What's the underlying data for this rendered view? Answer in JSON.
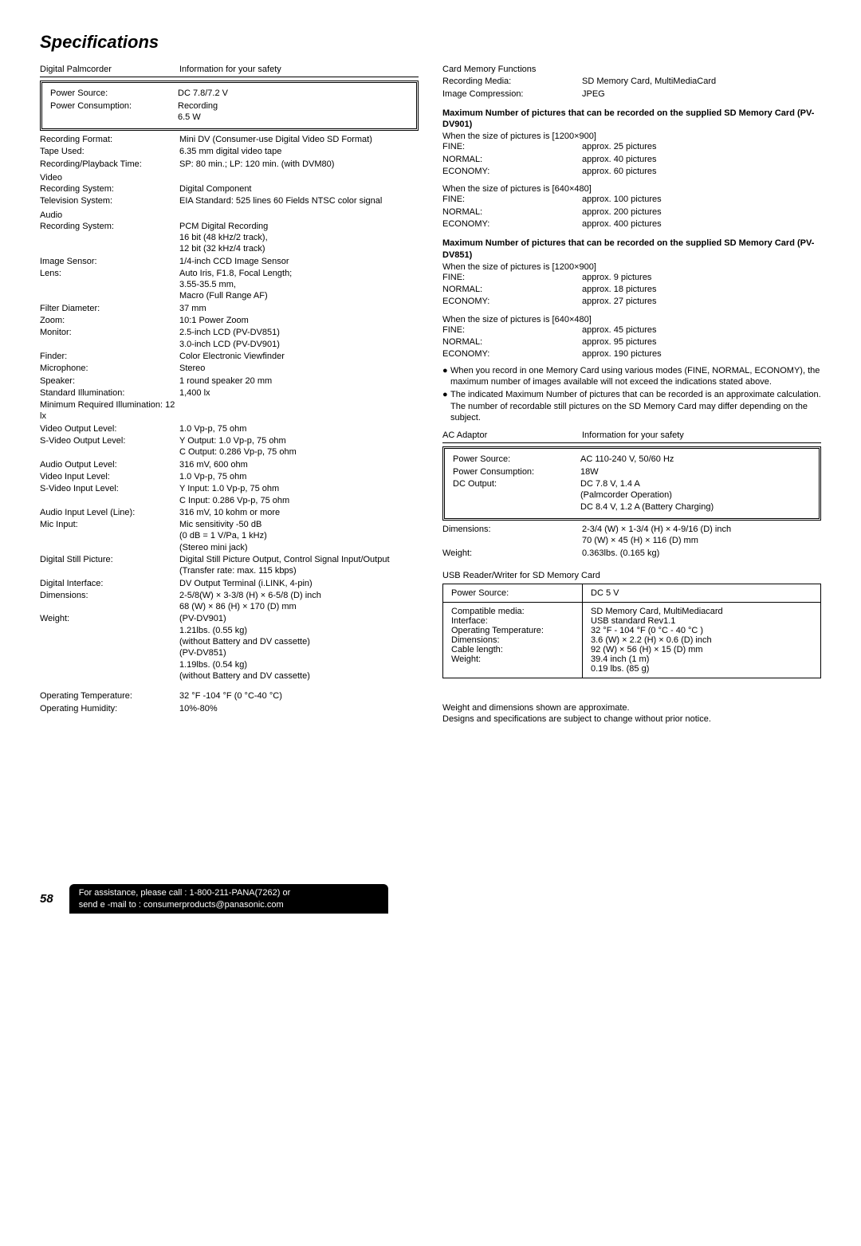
{
  "title": "Specifications",
  "left": {
    "top": {
      "label": "Digital Palmcorder",
      "value": "Information for your safety"
    },
    "box1": [
      {
        "label": "Power Source:",
        "value": "DC 7.8/7.2 V"
      },
      {
        "label": "Power Consumption:",
        "value": "Recording\n6.5 W"
      }
    ],
    "seg1": [
      {
        "label": "Recording Format:",
        "value": "Mini DV (Consumer-use Digital Video SD Format)"
      },
      {
        "label": "Tape Used:",
        "value": "6.35 mm digital video tape"
      },
      {
        "label": "Recording/Playback Time:",
        "value": "SP: 80 min.; LP: 120 min. (with DVM80)"
      }
    ],
    "videoHead": "Video",
    "seg2": [
      {
        "label": "Recording System:",
        "value": "Digital Component"
      },
      {
        "label": "Television System:",
        "value": "EIA Standard: 525 lines 60 Fields NTSC color signal"
      }
    ],
    "audioHead": "Audio",
    "seg3": [
      {
        "label": "Recording System:",
        "value": "PCM Digital Recording\n16 bit (48 kHz/2 track),\n12 bit (32 kHz/4 track)"
      },
      {
        "label": "Image Sensor:",
        "value": "1/4-inch CCD Image Sensor"
      },
      {
        "label": "Lens:",
        "value": "Auto Iris, F1.8, Focal Length;\n3.55-35.5 mm,\nMacro (Full Range AF)"
      },
      {
        "label": "Filter Diameter:",
        "value": "37 mm"
      },
      {
        "label": "Zoom:",
        "value": "10:1 Power Zoom"
      },
      {
        "label": "Monitor:",
        "value": "2.5-inch LCD (PV-DV851)\n3.0-inch LCD (PV-DV901)"
      },
      {
        "label": "Finder:",
        "value": "Color Electronic Viewfinder"
      },
      {
        "label": "Microphone:",
        "value": "Stereo"
      },
      {
        "label": "Speaker:",
        "value": "1 round speaker  20 mm"
      },
      {
        "label": "Standard Illumination:",
        "value": "1,400 lx"
      },
      {
        "label": "Minimum Required Illumination: 12 lx",
        "value": ""
      },
      {
        "label": "Video Output Level:",
        "value": "1.0 Vp-p, 75 ohm"
      },
      {
        "label": "S-Video Output Level:",
        "value": "Y Output: 1.0 Vp-p, 75 ohm\nC Output: 0.286 Vp-p, 75 ohm"
      },
      {
        "label": "Audio Output Level:",
        "value": "316 mV, 600 ohm"
      },
      {
        "label": "Video Input Level:",
        "value": "1.0 Vp-p, 75 ohm"
      },
      {
        "label": "S-Video Input Level:",
        "value": "Y Input: 1.0 Vp-p, 75 ohm\nC Input: 0.286 Vp-p, 75 ohm"
      },
      {
        "label": "Audio Input Level (Line):",
        "value": "316 mV, 10 kohm or more"
      },
      {
        "label": "Mic Input:",
        "value": "Mic sensitivity -50 dB\n(0 dB = 1 V/Pa, 1 kHz)\n(Stereo mini jack)"
      },
      {
        "label": "Digital Still Picture:",
        "value": "Digital Still Picture Output, Control Signal Input/Output\n(Transfer rate: max. 115 kbps)"
      },
      {
        "label": "Digital Interface:",
        "value": "DV Output Terminal (i.LINK, 4-pin)"
      },
      {
        "label": "Dimensions:",
        "value": "2-5/8(W) × 3-3/8 (H) × 6-5/8 (D) inch\n68 (W) × 86 (H) × 170 (D) mm"
      },
      {
        "label": "Weight:",
        "value": "(PV-DV901)\n1.21lbs. (0.55 kg)\n(without Battery and DV cassette)\n(PV-DV851)\n1.19lbs. (0.54 kg)\n(without Battery and DV cassette)"
      }
    ],
    "seg4": [
      {
        "label": "Operating Temperature:",
        "value": "32 °F -104 °F (0 °C-40 °C)"
      },
      {
        "label": "Operating Humidity:",
        "value": "10%-80%"
      }
    ]
  },
  "right": {
    "card": [
      {
        "label": "Card Memory Functions",
        "value": ""
      },
      {
        "label": "Recording Media:",
        "value": "SD Memory Card, MultiMediaCard"
      },
      {
        "label": "Image Compression:",
        "value": "JPEG"
      }
    ],
    "max901Head": "Maximum Number of pictures that can be recorded on the supplied SD Memory Card (PV-DV901)",
    "size1200Head": "When the size of pictures is [1200×900]",
    "size1200_901": [
      {
        "label": "FINE:",
        "value": "approx. 25 pictures"
      },
      {
        "label": "NORMAL:",
        "value": "approx. 40 pictures"
      },
      {
        "label": "ECONOMY:",
        "value": "approx. 60 pictures"
      }
    ],
    "size640Head": "When the size of pictures is [640×480]",
    "size640_901": [
      {
        "label": "FINE:",
        "value": "approx. 100 pictures"
      },
      {
        "label": "NORMAL:",
        "value": "approx. 200 pictures"
      },
      {
        "label": "ECONOMY:",
        "value": "approx. 400 pictures"
      }
    ],
    "max851Head": "Maximum Number of pictures that can be recorded on the supplied SD Memory Card (PV-DV851)",
    "size1200_851": [
      {
        "label": "FINE:",
        "value": "approx. 9 pictures"
      },
      {
        "label": "NORMAL:",
        "value": "approx. 18 pictures"
      },
      {
        "label": "ECONOMY:",
        "value": "approx. 27 pictures"
      }
    ],
    "size640_851": [
      {
        "label": "FINE:",
        "value": "approx. 45 pictures"
      },
      {
        "label": "NORMAL:",
        "value": "approx. 95 pictures"
      },
      {
        "label": "ECONOMY:",
        "value": "approx. 190 pictures"
      }
    ],
    "bullets": [
      "When you record in one Memory Card using various modes (FINE, NORMAL, ECONOMY), the maximum number of images available will not exceed the indications stated above.",
      "The indicated Maximum Number of pictures that can be recorded is an approximate calculation. The number of recordable still pictures on the SD Memory Card may differ depending on the subject."
    ],
    "acTop": {
      "label": "AC Adaptor",
      "value": "Information for your safety"
    },
    "acBox": [
      {
        "label": "Power Source:",
        "value": "AC 110-240 V, 50/60 Hz"
      },
      {
        "label": "Power Consumption:",
        "value": "18W"
      },
      {
        "label": "DC Output:",
        "value": "DC 7.8 V, 1.4 A\n(Palmcorder Operation)\nDC 8.4 V, 1.2 A (Battery Charging)"
      }
    ],
    "acAfter": [
      {
        "label": "Dimensions:",
        "value": "2-3/4 (W) × 1-3/4 (H) × 4-9/16 (D) inch\n70 (W) × 45 (H) × 116 (D) mm"
      },
      {
        "label": "Weight:",
        "value": "0.363lbs. (0.165 kg)"
      }
    ],
    "usbHead": "USB Reader/Writer for SD Memory Card",
    "usbRow1": {
      "label": "Power Source:",
      "value": "DC 5 V"
    },
    "usbRow2": [
      {
        "label": "Compatible media:",
        "value": "SD Memory Card, MultiMediacard"
      },
      {
        "label": "Interface:",
        "value": "USB standard Rev1.1"
      },
      {
        "label": "Operating Temperature:",
        "value": "32 °F - 104 °F (0 °C - 40 °C )"
      },
      {
        "label": "Dimensions:",
        "value": "3.6 (W) × 2.2 (H) × 0.6 (D) inch\n92 (W) × 56 (H) × 15 (D) mm"
      },
      {
        "label": "Cable length:",
        "value": "39.4 inch (1 m)"
      },
      {
        "label": "Weight:",
        "value": "0.19 lbs. (85 g)"
      }
    ],
    "note": "Weight and dimensions shown are approximate.\nDesigns and specifications are subject to change without prior notice."
  },
  "footer": {
    "page": "58",
    "bar": "For assistance, please call : 1-800-211-PANA(7262) or\nsend e -mail to : consumerproducts@panasonic.com"
  }
}
